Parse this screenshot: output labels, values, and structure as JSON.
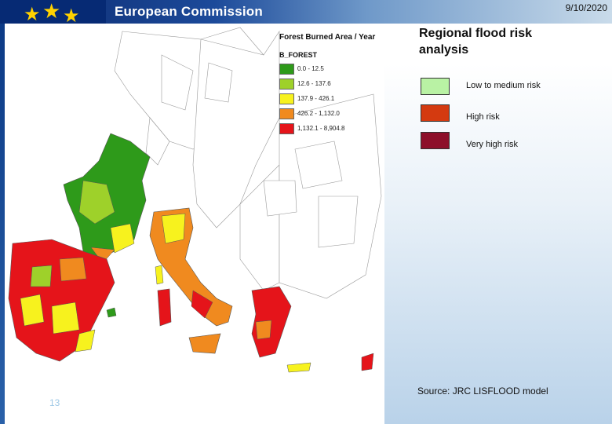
{
  "header": {
    "org_name": "European Commission",
    "date": "9/10/2020"
  },
  "map": {
    "legend_title": "Forest Burned Area / Year",
    "legend_subtitle": "B_FOREST",
    "legend_items": [
      {
        "label": "0.0 - 12.5",
        "color": "#2e9a1a"
      },
      {
        "label": "12.6 - 137.6",
        "color": "#9ed12a"
      },
      {
        "label": "137.9 - 426.1",
        "color": "#f7f21e"
      },
      {
        "label": "426.2 - 1,132.0",
        "color": "#f08a1f"
      },
      {
        "label": "1,132.1 - 8,904.8",
        "color": "#e5141a"
      }
    ]
  },
  "panel": {
    "title": "Regional flood risk analysis",
    "legend": [
      {
        "label": "Low to medium risk",
        "color": "#b9f2a4"
      },
      {
        "label": "High risk",
        "color": "#d43a10"
      },
      {
        "label": "Very high risk",
        "color": "#8d0f2a"
      }
    ],
    "source": "Source: JRC LISFLOOD model"
  },
  "footer": {
    "slide_number": "13"
  }
}
